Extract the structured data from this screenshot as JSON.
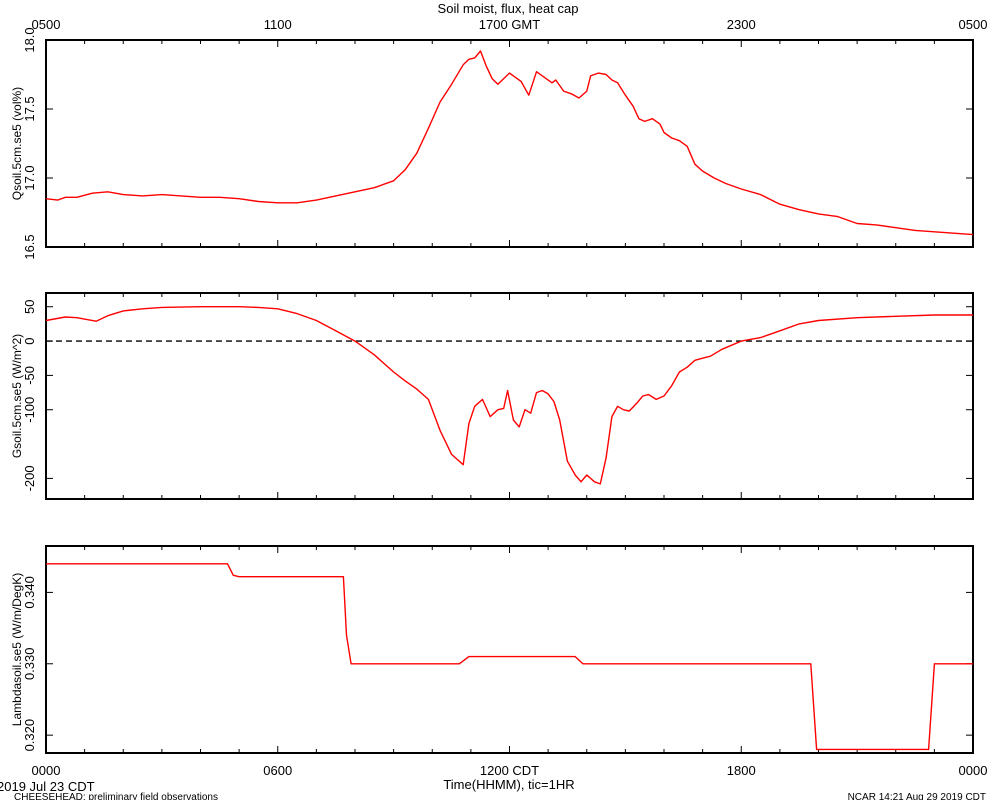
{
  "title": "Soil moist, flux, heat cap",
  "top_axis": {
    "ticks": [
      "0500",
      "1100",
      "1700 GMT",
      "2300",
      "0500"
    ]
  },
  "bottom_axis": {
    "ticks": [
      "0000",
      "0600",
      "1200 CDT",
      "1800",
      "0000"
    ],
    "label": "Time(HHMM), tic=1HR"
  },
  "footer": {
    "date": "2019 Jul 23 CDT",
    "project": "CHEESEHEAD: preliminary field observations",
    "stamp": "NCAR 14:21 Aug 29 2019 CDT"
  },
  "colors": {
    "series": "#ff0000",
    "axes": "#000000",
    "zero_line": "#000000"
  },
  "chart_data": [
    {
      "type": "line",
      "ylabel": "Qsoil.5cm.se5 (vol%)",
      "ylim": [
        16.5,
        18.0
      ],
      "yticks": [
        16.5,
        17.0,
        17.5,
        18.0
      ],
      "ytick_labels": [
        "16.5",
        "17.0",
        "17.5",
        "18.0"
      ],
      "xlim": [
        0,
        24
      ],
      "series": [
        {
          "x": [
            0,
            0.3,
            0.5,
            0.8,
            1.2,
            1.6,
            2.0,
            2.5,
            3.0,
            3.5,
            4.0,
            4.5,
            5.0,
            5.5,
            6.0,
            6.5,
            7.0,
            7.5,
            8.0,
            8.5,
            9.0,
            9.3,
            9.6,
            9.9,
            10.2,
            10.5,
            10.8,
            10.95,
            11.1,
            11.25,
            11.4,
            11.55,
            11.7,
            12.0,
            12.15,
            12.3,
            12.5,
            12.7,
            12.9,
            13.1,
            13.2,
            13.4,
            13.6,
            13.8,
            14.0,
            14.1,
            14.3,
            14.5,
            14.65,
            14.8,
            15.0,
            15.2,
            15.35,
            15.5,
            15.7,
            15.9,
            16.0,
            16.2,
            16.4,
            16.6,
            16.8,
            17.0,
            17.3,
            17.6,
            18.0,
            18.5,
            19.0,
            19.5,
            20.0,
            20.5,
            21.0,
            21.5,
            22.0,
            22.5,
            23.0,
            23.5,
            24.0
          ],
          "values": [
            16.85,
            16.84,
            16.86,
            16.86,
            16.89,
            16.9,
            16.88,
            16.87,
            16.88,
            16.87,
            16.86,
            16.86,
            16.85,
            16.83,
            16.82,
            16.82,
            16.84,
            16.87,
            16.9,
            16.93,
            16.98,
            17.06,
            17.18,
            17.36,
            17.55,
            17.68,
            17.82,
            17.86,
            17.87,
            17.92,
            17.81,
            17.72,
            17.68,
            17.76,
            17.73,
            17.7,
            17.6,
            17.77,
            17.73,
            17.69,
            17.71,
            17.63,
            17.61,
            17.58,
            17.63,
            17.74,
            17.76,
            17.75,
            17.71,
            17.69,
            17.6,
            17.52,
            17.43,
            17.41,
            17.43,
            17.39,
            17.33,
            17.29,
            17.27,
            17.23,
            17.1,
            17.05,
            17.0,
            16.96,
            16.92,
            16.88,
            16.81,
            16.77,
            16.74,
            16.72,
            16.67,
            16.66,
            16.64,
            16.62,
            16.61,
            16.6,
            16.59
          ]
        }
      ]
    },
    {
      "type": "line",
      "ylabel": "Gsoil.5cm.se5 (W/m^2)",
      "ylim": [
        -230,
        70
      ],
      "yticks": [
        -200,
        -100,
        -50,
        0,
        50
      ],
      "ytick_labels": [
        "-200",
        "-100",
        "-50",
        "0",
        "50"
      ],
      "zero_line": true,
      "xlim": [
        0,
        24
      ],
      "series": [
        {
          "x": [
            0,
            0.5,
            0.8,
            1.1,
            1.3,
            1.6,
            2.0,
            2.5,
            3.0,
            4.0,
            5.0,
            5.5,
            6.0,
            6.5,
            7.0,
            7.5,
            8.0,
            8.5,
            9.0,
            9.3,
            9.6,
            9.9,
            10.2,
            10.5,
            10.8,
            10.95,
            11.1,
            11.3,
            11.5,
            11.7,
            11.85,
            11.95,
            12.1,
            12.25,
            12.4,
            12.55,
            12.7,
            12.85,
            13.0,
            13.15,
            13.3,
            13.5,
            13.7,
            13.85,
            14.0,
            14.2,
            14.35,
            14.5,
            14.65,
            14.8,
            14.95,
            15.1,
            15.3,
            15.45,
            15.6,
            15.8,
            16.0,
            16.2,
            16.4,
            16.6,
            16.8,
            17.0,
            17.2,
            17.5,
            18.0,
            18.5,
            19.0,
            19.5,
            20.0,
            21.0,
            22.0,
            23.0,
            24.0
          ],
          "values": [
            30,
            35,
            34,
            31,
            29,
            37,
            44,
            47,
            49,
            50,
            50,
            49,
            47,
            40,
            30,
            15,
            0,
            -20,
            -45,
            -58,
            -70,
            -85,
            -130,
            -165,
            -180,
            -120,
            -95,
            -85,
            -110,
            -100,
            -98,
            -72,
            -115,
            -125,
            -100,
            -105,
            -75,
            -72,
            -77,
            -88,
            -115,
            -175,
            -195,
            -205,
            -195,
            -205,
            -208,
            -170,
            -110,
            -95,
            -100,
            -102,
            -90,
            -80,
            -78,
            -85,
            -80,
            -65,
            -45,
            -38,
            -28,
            -25,
            -22,
            -12,
            0,
            5,
            15,
            25,
            30,
            34,
            36,
            38,
            38
          ]
        }
      ]
    },
    {
      "type": "line",
      "ylabel": "Lambdasoil.se5 (W/m/DegK)",
      "ylim": [
        0.3175,
        0.3465
      ],
      "yticks": [
        0.32,
        0.33,
        0.34
      ],
      "ytick_labels": [
        "0.320",
        "0.330",
        "0.340"
      ],
      "xlim": [
        0,
        24
      ],
      "series": [
        {
          "x": [
            0,
            4.7,
            4.85,
            5.0,
            7.7,
            7.78,
            7.9,
            10.7,
            10.95,
            13.7,
            13.9,
            19.8,
            19.95,
            22.85,
            23.0,
            24.0
          ],
          "values": [
            0.344,
            0.344,
            0.3424,
            0.3422,
            0.3422,
            0.334,
            0.33,
            0.33,
            0.331,
            0.331,
            0.33,
            0.33,
            0.318,
            0.318,
            0.33,
            0.33
          ]
        }
      ]
    }
  ]
}
